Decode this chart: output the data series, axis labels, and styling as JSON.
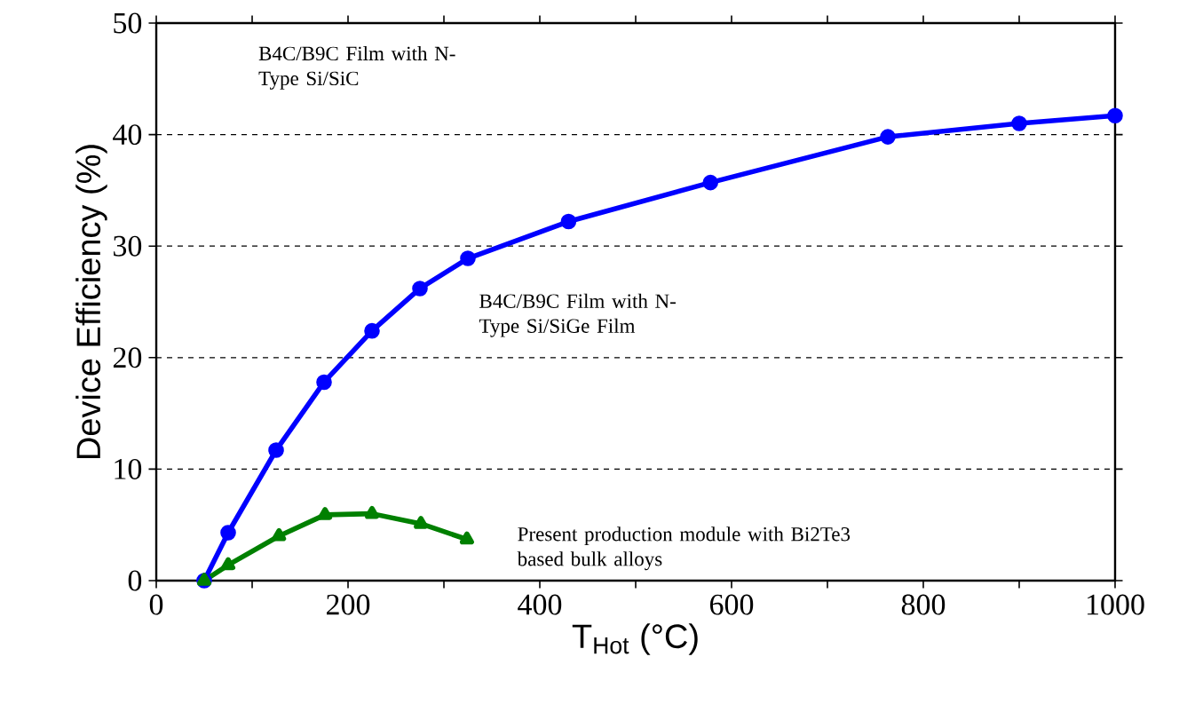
{
  "chart_data": {
    "type": "line",
    "xlabel": "T$_{Hot}$ (°C)",
    "ylabel": "Device Efficiency (%)",
    "xlim": [
      0,
      1000
    ],
    "ylim": [
      0,
      50
    ],
    "xticks": [
      0,
      {
        "value": 100,
        "label": null
      },
      200,
      {
        "value": 300,
        "label": null
      },
      400,
      {
        "value": 500,
        "label": null
      },
      600,
      {
        "value": 700,
        "label": null
      },
      800,
      {
        "value": 900,
        "label": null
      },
      1000
    ],
    "yticks": [
      0,
      10,
      20,
      30,
      40,
      50
    ],
    "grid": "y",
    "series": [
      {
        "color": "#0000ff",
        "marker": "circle",
        "x": [
          50,
          75,
          125,
          175,
          225,
          275,
          325,
          430,
          578,
          763,
          900,
          1000
        ],
        "values": [
          0,
          4.3,
          11.7,
          17.8,
          22.4,
          26.2,
          28.9,
          32.2,
          35.7,
          39.8,
          41,
          41.7
        ]
      },
      {
        "color": "#008000",
        "marker": "triangle",
        "x": [
          50,
          75,
          128,
          176,
          225,
          276,
          324
        ],
        "values": [
          0,
          1.4,
          4.0,
          5.9,
          6.0,
          5.1,
          3.7
        ]
      }
    ],
    "annotations": [
      "B4C/B9C Film with N-Type Si/SiC",
      "B4C/B9C Film with N-Type Si/SiGe Film",
      "Present production module with Bi2Te3 based bulk alloys"
    ]
  }
}
